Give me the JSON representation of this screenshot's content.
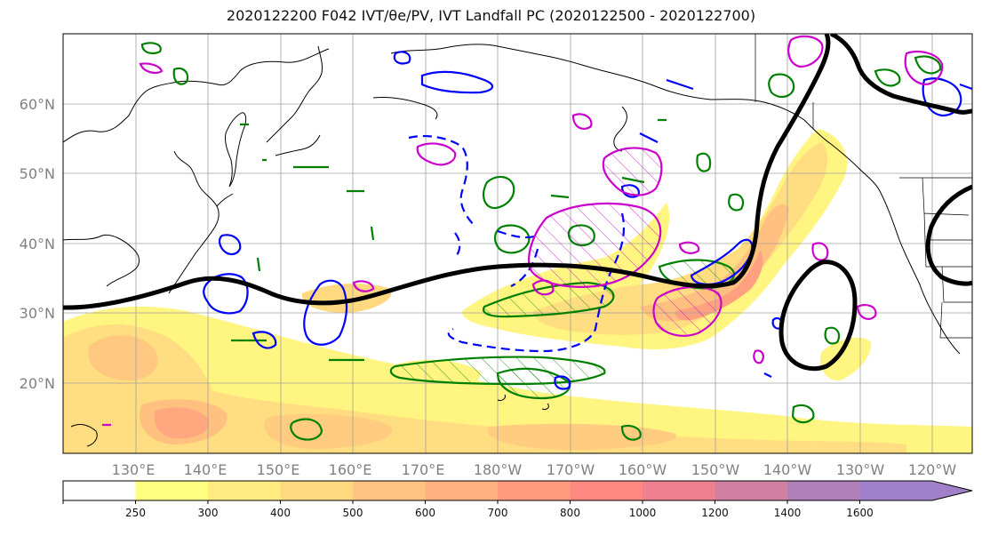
{
  "title": "2020122200 F042 IVT/θe/PV, IVT Landfall PC (2020122500 - 2020122700)",
  "map": {
    "lat_labels": [
      "60°N",
      "50°N",
      "40°N",
      "30°N",
      "20°N"
    ],
    "lon_labels": [
      "130°E",
      "140°E",
      "150°E",
      "160°E",
      "170°E",
      "180°W",
      "170°W",
      "160°W",
      "150°W",
      "140°W",
      "130°W",
      "120°W"
    ],
    "overlays": {
      "pc_contour_color": "#000000",
      "theta_e_color": "#0000ff",
      "pv_color": "#cc00cc",
      "green_contour_color": "#008000"
    }
  },
  "colorbar": {
    "ticks": [
      "250",
      "300",
      "400",
      "500",
      "600",
      "700",
      "800",
      "1000",
      "1200",
      "1400",
      "1600"
    ],
    "colors": [
      "#ffffff",
      "#ffff80",
      "#ffec80",
      "#ffd880",
      "#ffc480",
      "#ffb080",
      "#ff9c80",
      "#ff8880",
      "#ef8090",
      "#d080a0",
      "#b080b8",
      "#a080c8"
    ]
  }
}
